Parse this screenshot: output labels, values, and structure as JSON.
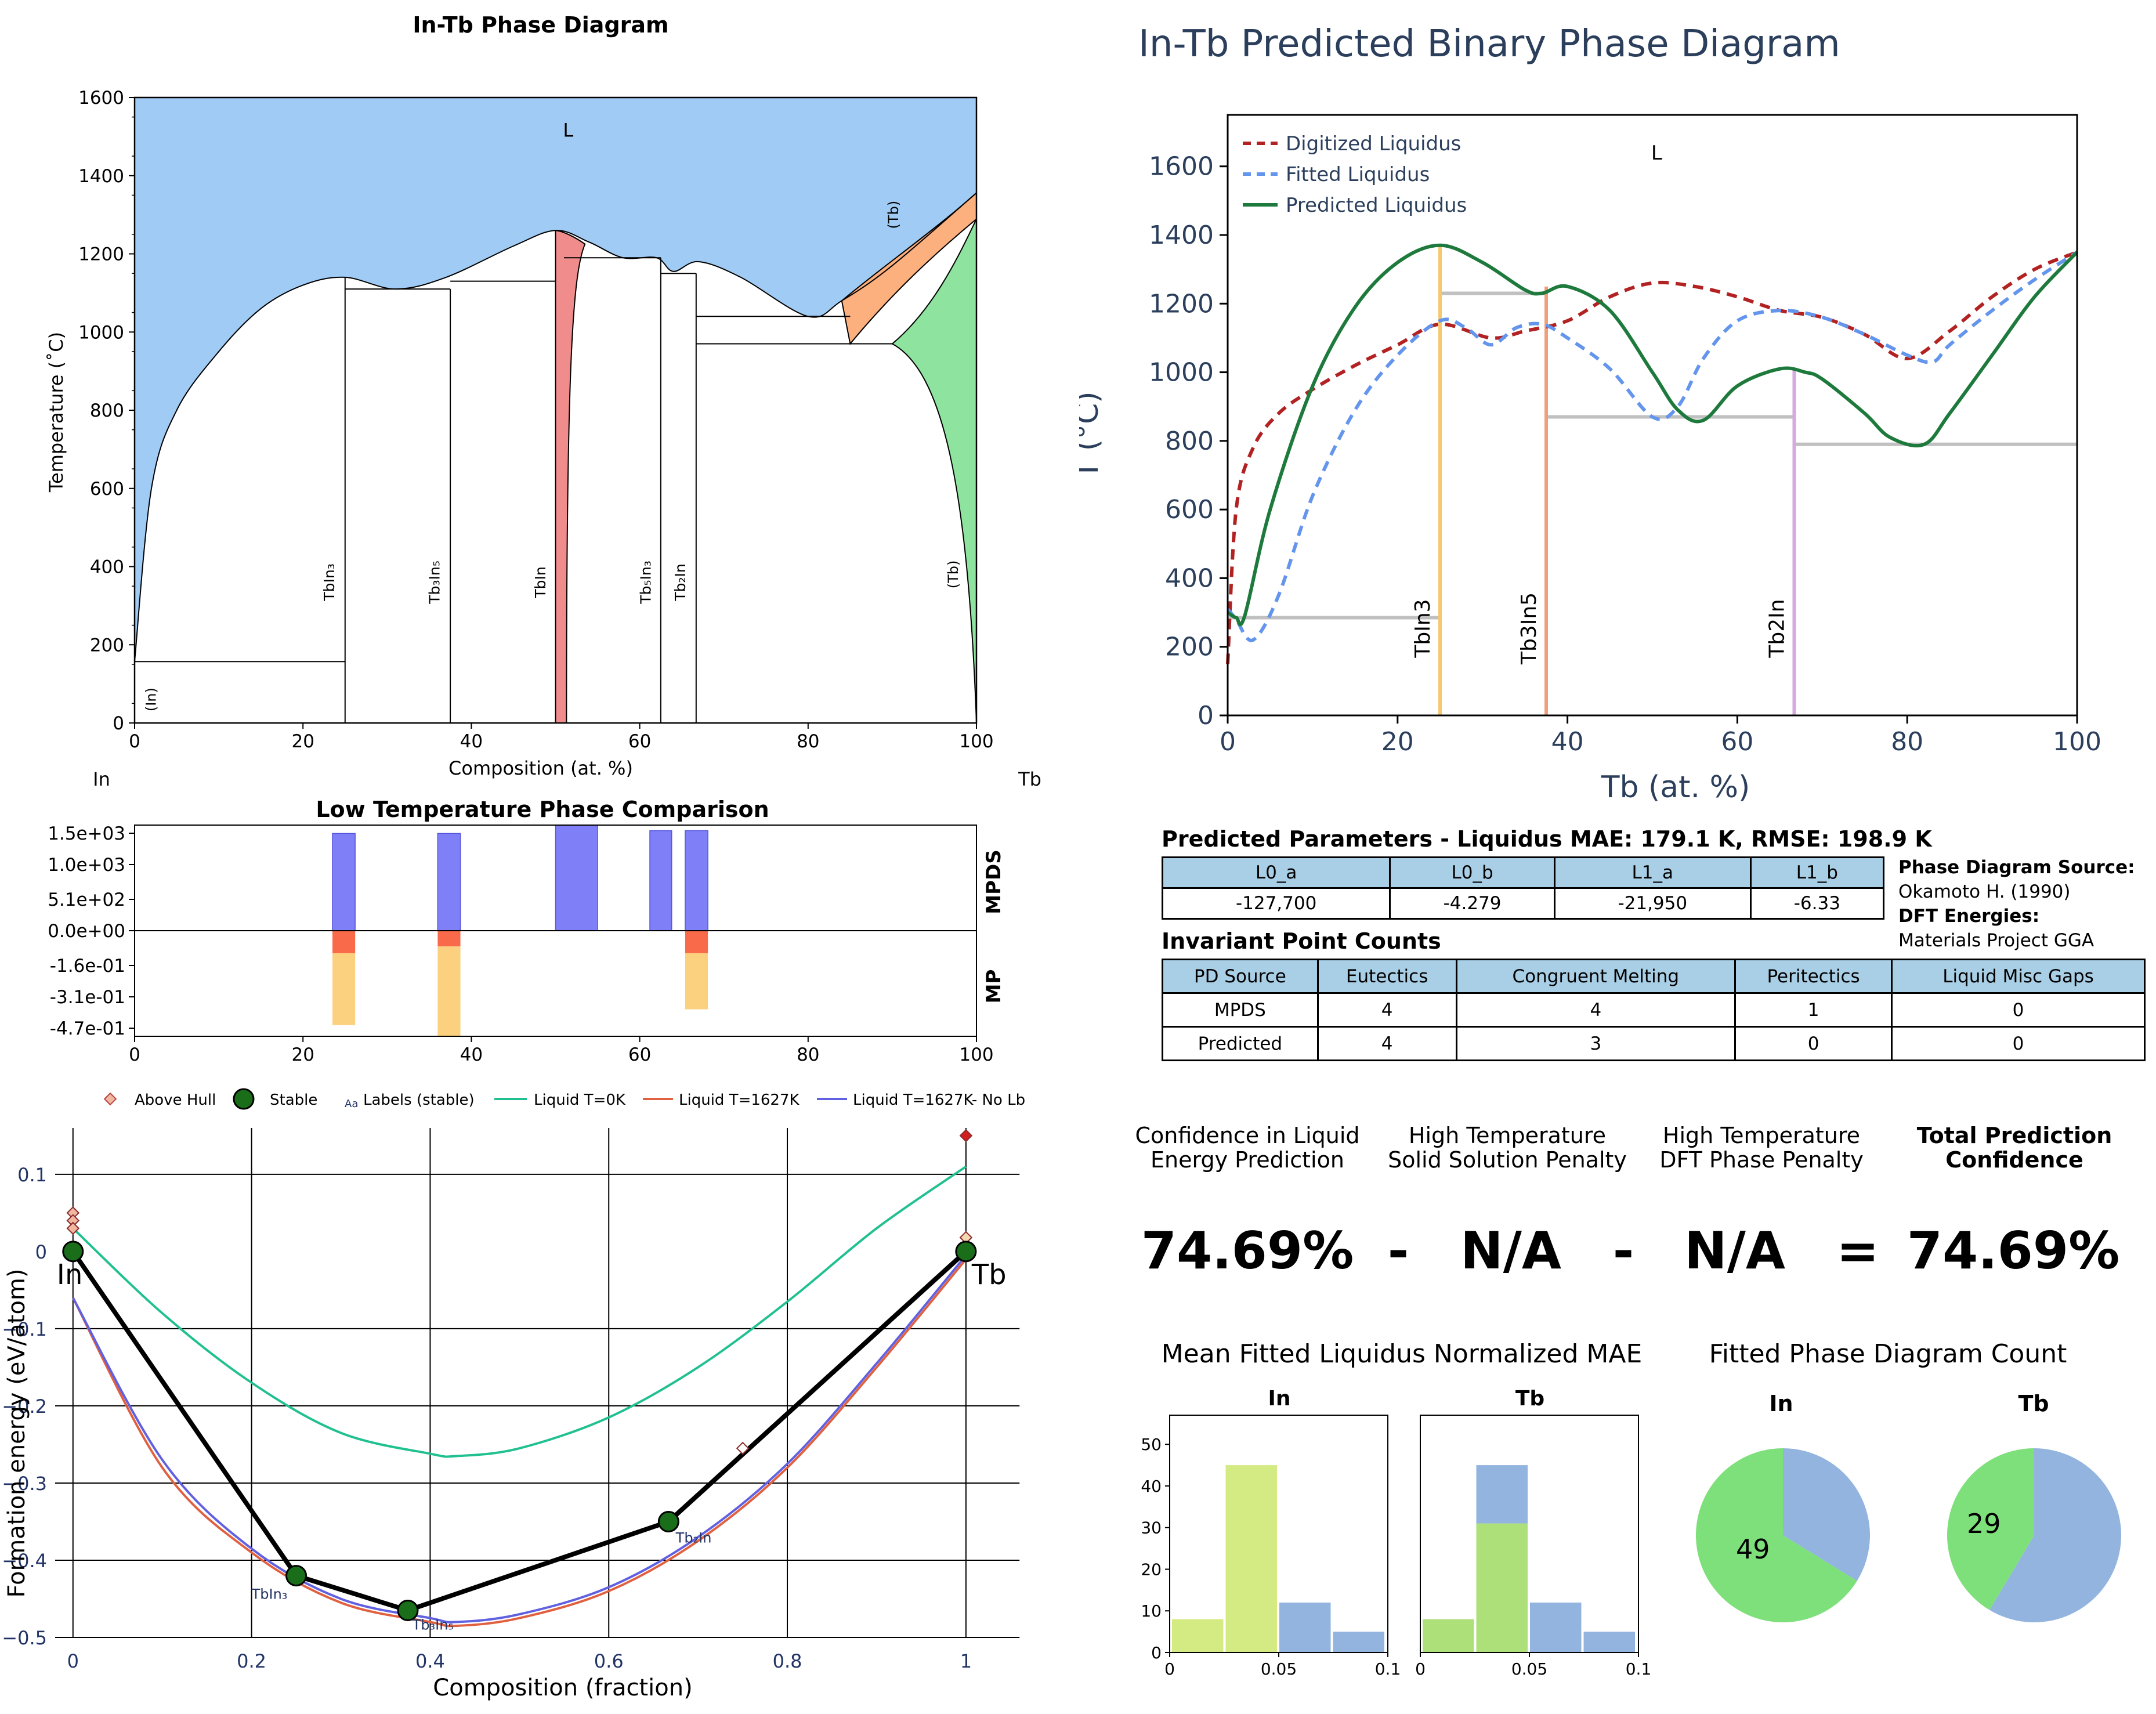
{
  "panels": {
    "mpds": {
      "title": "In-Tb Phase Diagram",
      "xlabel": "Composition (at. %)",
      "ylabel": "Temperature (˚C)",
      "left_element": "In",
      "right_element": "Tb",
      "xticks": [
        "0",
        "20",
        "40",
        "60",
        "80",
        "100"
      ],
      "yticks": [
        "0",
        "200",
        "400",
        "600",
        "800",
        "1000",
        "1200",
        "1400",
        "1600"
      ],
      "region_labels": {
        "liquid": "L",
        "tb_solid_high": "(Tb)",
        "tb_solid": "(Tb)",
        "in_solid": "(In)"
      },
      "phase_labels": [
        "TbIn₃",
        "Tb₃In₅",
        "TbIn",
        "Tb₅In₃",
        "Tb₂In"
      ],
      "colors": {
        "liquid": "#a0cbf4",
        "tbin": "#f08c8c",
        "tb_high": "#fcb07e",
        "tb_solid": "#8ee49e"
      }
    },
    "predicted": {
      "title": "In-Tb Predicted Binary Phase Diagram",
      "xlabel": "Tb (at. %)",
      "ylabel": "T (°C)",
      "liquid_label": "L",
      "legend": [
        "Digitized Liquidus",
        "Fitted Liquidus",
        "Predicted Liquidus"
      ],
      "xticks": [
        "0",
        "20",
        "40",
        "60",
        "80",
        "100"
      ],
      "yticks": [
        "0",
        "200",
        "400",
        "600",
        "800",
        "1000",
        "1200",
        "1400",
        "1600"
      ],
      "phase_labels": [
        "TbIn3",
        "Tb3In5",
        "Tb2In"
      ],
      "colors": {
        "digitized": "#b22222",
        "fitted": "#6495ed",
        "predicted": "#1e7a3c",
        "invariant": "#c0c0c0",
        "TbIn3": "#f5c86e",
        "Tb3In5": "#f0a078",
        "Tb2In": "#d8a8e0",
        "text": "#2b3f5c"
      }
    },
    "comparison": {
      "title": "Low Temperature Phase Comparison",
      "yticks": [
        "1.5e+03",
        "1.0e+03",
        "5.1e+02",
        "0.0e+00",
        "-1.6e-01",
        "-3.1e-01",
        "-4.7e-01"
      ],
      "xticks": [
        "0",
        "20",
        "40",
        "60",
        "80",
        "100"
      ],
      "label_top": "MPDS",
      "label_bottom": "MP"
    },
    "hull": {
      "xlabel": "Composition (fraction)",
      "ylabel": "Formation energy (eV/atom)",
      "legend": [
        "Above Hull",
        "Stable",
        "Labels (stable)",
        "Liquid T=0K",
        "Liquid T=1627K",
        "Liquid T=1627K- No Lb"
      ],
      "legend_aa": "Aa",
      "xticks": [
        "0",
        "0.2",
        "0.4",
        "0.6",
        "0.8",
        "1"
      ],
      "yticks": [
        "0.1",
        "0",
        "−0.1",
        "−0.2",
        "−0.3",
        "−0.4",
        "−0.5"
      ],
      "end_labels": [
        "In",
        "Tb"
      ],
      "compound_labels": [
        "TbIn₃",
        "Tb₃In₅",
        "Tb₂In"
      ]
    },
    "params": {
      "title": "Predicted Parameters - Liquidus MAE: 179.1 K, RMSE: 198.9 K",
      "headers": [
        "L0_a",
        "L0_b",
        "L1_a",
        "L1_b"
      ],
      "values": [
        "-127,700",
        "-4.279",
        "-21,950",
        "-6.33"
      ],
      "source_label": "Phase Diagram Source:",
      "source_value": "Okamoto H. (1990)",
      "dft_label": "DFT Energies:",
      "dft_value": "Materials Project GGA"
    },
    "invariants": {
      "title": "Invariant Point Counts",
      "headers": [
        "PD Source",
        "Eutectics",
        "Congruent Melting",
        "Peritectics",
        "Liquid Misc Gaps"
      ],
      "rows": [
        [
          "MPDS",
          "4",
          "4",
          "1",
          "0"
        ],
        [
          "Predicted",
          "4",
          "3",
          "0",
          "0"
        ]
      ]
    },
    "confidence": {
      "labels": [
        [
          "Confidence in Liquid",
          "Energy Prediction"
        ],
        [
          "High Temperature",
          "Solid Solution Penalty"
        ],
        [
          "High Temperature",
          "DFT Phase Penalty"
        ],
        [
          "Total Prediction",
          "Confidence"
        ]
      ],
      "values": [
        "74.69%",
        "-",
        "N/A",
        "-",
        "N/A",
        "=",
        "74.69%"
      ]
    },
    "mae": {
      "title": "Mean Fitted Liquidus Normalized MAE",
      "subtitles": [
        "In",
        "Tb"
      ],
      "xticks": [
        "0",
        "0.05",
        "0.1"
      ],
      "yticks": [
        "0",
        "10",
        "20",
        "30",
        "40",
        "50"
      ]
    },
    "count": {
      "title": "Fitted Phase Diagram Count",
      "subtitles": [
        "In",
        "Tb"
      ],
      "labels": [
        "49",
        "29"
      ]
    }
  },
  "chart_data": [
    {
      "type": "area",
      "title": "In-Tb Phase Diagram",
      "xlabel": "Composition (at. %)",
      "ylabel": "Temperature (˚C)",
      "xlim": [
        0,
        100
      ],
      "ylim": [
        0,
        1600
      ],
      "liquidus": [
        [
          0,
          157
        ],
        [
          2,
          600
        ],
        [
          5,
          800
        ],
        [
          10,
          950
        ],
        [
          15,
          1060
        ],
        [
          20,
          1120
        ],
        [
          25,
          1140
        ],
        [
          31,
          1110
        ],
        [
          37,
          1140
        ],
        [
          45,
          1220
        ],
        [
          50,
          1260
        ],
        [
          54,
          1230
        ],
        [
          58,
          1190
        ],
        [
          62,
          1190
        ],
        [
          64,
          1155
        ],
        [
          67,
          1180
        ],
        [
          72,
          1140
        ],
        [
          80,
          1040
        ],
        [
          84,
          1080
        ],
        [
          90,
          1170
        ],
        [
          100,
          1356
        ]
      ],
      "compounds": [
        {
          "name": "TbIn₃",
          "x": 25,
          "tmax": 1140
        },
        {
          "name": "Tb₃In₅",
          "x": 37.5,
          "tmax": 1110
        },
        {
          "name": "TbIn",
          "x": 50,
          "tmax": 1260
        },
        {
          "name": "Tb₅In₃",
          "x": 62.5,
          "tmax": 1190
        },
        {
          "name": "Tb₂In",
          "x": 66.7,
          "tmax": 1150
        }
      ],
      "invariants": [
        {
          "T": 157,
          "x": [
            0,
            25
          ]
        },
        {
          "T": 1110,
          "x": [
            25,
            37.5
          ]
        },
        {
          "T": 1130,
          "x": [
            37.5,
            50
          ]
        },
        {
          "T": 1190,
          "x": [
            51,
            62.5
          ]
        },
        {
          "T": 1150,
          "x": [
            62.5,
            66.7
          ]
        },
        {
          "T": 1040,
          "x": [
            66.7,
            85
          ]
        },
        {
          "T": 970,
          "x": [
            66.7,
            90
          ]
        }
      ]
    },
    {
      "type": "line",
      "title": "In-Tb Predicted Binary Phase Diagram",
      "xlabel": "Tb (at. %)",
      "ylabel": "T (°C)",
      "xlim": [
        0,
        100
      ],
      "ylim": [
        0,
        1750
      ],
      "series": [
        {
          "name": "Digitized Liquidus",
          "x": [
            0,
            1,
            3,
            6,
            10,
            15,
            20,
            25,
            31,
            35,
            40,
            45,
            50,
            55,
            60,
            65,
            70,
            75,
            80,
            85,
            90,
            95,
            100
          ],
          "y": [
            150,
            600,
            780,
            880,
            950,
            1020,
            1080,
            1140,
            1100,
            1120,
            1150,
            1220,
            1260,
            1250,
            1220,
            1180,
            1160,
            1110,
            1040,
            1120,
            1220,
            1300,
            1350
          ]
        },
        {
          "name": "Fitted Liquidus",
          "x": [
            0,
            1,
            3,
            6,
            10,
            15,
            20,
            25,
            28,
            31,
            34,
            37,
            40,
            45,
            50,
            53,
            56,
            60,
            65,
            70,
            75,
            80,
            83,
            85,
            90,
            95,
            100
          ],
          "y": [
            310,
            280,
            220,
            350,
            640,
            890,
            1050,
            1150,
            1130,
            1080,
            1130,
            1140,
            1100,
            1010,
            870,
            900,
            1040,
            1150,
            1180,
            1160,
            1110,
            1050,
            1030,
            1080,
            1180,
            1270,
            1350
          ]
        },
        {
          "name": "Predicted Liquidus",
          "x": [
            0,
            1,
            2,
            5,
            10,
            15,
            20,
            25,
            30,
            35,
            37,
            40,
            45,
            50,
            53,
            56,
            60,
            65,
            68,
            70,
            75,
            78,
            82,
            85,
            90,
            95,
            100
          ],
          "y": [
            300,
            285,
            290,
            600,
            960,
            1190,
            1320,
            1370,
            1320,
            1240,
            1230,
            1250,
            1180,
            1000,
            890,
            860,
            960,
            1010,
            1000,
            980,
            880,
            810,
            790,
            880,
            1050,
            1220,
            1350
          ]
        }
      ],
      "compounds": [
        {
          "name": "TbIn3",
          "x": 25,
          "tmax": 1370
        },
        {
          "name": "Tb3In5",
          "x": 37.5,
          "tmax": 1250
        },
        {
          "name": "Tb2In",
          "x": 66.7,
          "tmax": 1010
        }
      ],
      "invariants": [
        {
          "T": 285,
          "x": [
            0,
            25
          ]
        },
        {
          "T": 1230,
          "x": [
            25,
            37.5
          ]
        },
        {
          "T": 870,
          "x": [
            37.5,
            66.7
          ]
        },
        {
          "T": 790,
          "x": [
            66.7,
            100
          ]
        }
      ]
    },
    {
      "type": "bar",
      "title": "Low Temperature Phase Comparison",
      "xlim": [
        0,
        100
      ],
      "mpds_bars": [
        {
          "x0": 23.5,
          "x1": 26.2,
          "v": 1400
        },
        {
          "x0": 36,
          "x1": 38.7,
          "v": 1400
        },
        {
          "x0": 50,
          "x1": 55,
          "v": 1520
        },
        {
          "x0": 61.2,
          "x1": 63.8,
          "v": 1440
        },
        {
          "x0": 65.4,
          "x1": 68.1,
          "v": 1440
        }
      ],
      "mpds_ylim": [
        0,
        1520
      ],
      "mp_bars": [
        {
          "x0": 23.5,
          "x1": 26.2,
          "red": 0.1,
          "total": 0.42
        },
        {
          "x0": 36,
          "x1": 38.7,
          "red": 0.07,
          "total": 0.47
        },
        {
          "x0": 65.4,
          "x1": 68.1,
          "red": 0.1,
          "total": 0.35
        }
      ],
      "mp_ylim": [
        0,
        0.47
      ]
    },
    {
      "type": "line",
      "xlabel": "Composition (fraction)",
      "ylabel": "Formation energy (eV/atom)",
      "xlim": [
        -0.02,
        1.08
      ],
      "ylim": [
        -0.5,
        0.16
      ],
      "series": [
        {
          "name": "Liquid T=0K",
          "x": [
            0,
            0.1,
            0.2,
            0.3,
            0.4,
            0.43,
            0.5,
            0.6,
            0.7,
            0.8,
            0.9,
            1
          ],
          "y": [
            0.03,
            -0.08,
            -0.17,
            -0.235,
            -0.262,
            -0.265,
            -0.255,
            -0.215,
            -0.15,
            -0.065,
            0.03,
            0.11
          ]
        },
        {
          "name": "Liquid T=1627K",
          "x": [
            0,
            0.1,
            0.2,
            0.3,
            0.4,
            0.43,
            0.5,
            0.6,
            0.7,
            0.8,
            0.9,
            1
          ],
          "y": [
            -0.06,
            -0.28,
            -0.39,
            -0.455,
            -0.48,
            -0.485,
            -0.475,
            -0.44,
            -0.375,
            -0.28,
            -0.15,
            -0.01
          ]
        },
        {
          "name": "Liquid T=1627K- No Lb",
          "x": [
            0,
            0.1,
            0.2,
            0.3,
            0.4,
            0.43,
            0.5,
            0.6,
            0.7,
            0.8,
            0.9,
            1
          ],
          "y": [
            -0.06,
            -0.27,
            -0.385,
            -0.45,
            -0.475,
            -0.48,
            -0.47,
            -0.435,
            -0.37,
            -0.275,
            -0.145,
            -0.005
          ]
        },
        {
          "name": "Stable",
          "x": [
            0,
            0.25,
            0.375,
            0.667,
            1
          ],
          "y": [
            0,
            -0.42,
            -0.465,
            -0.35,
            0
          ]
        },
        {
          "name": "Above Hull",
          "x": [
            0,
            0,
            0,
            0.75,
            1,
            1
          ],
          "y": [
            0.05,
            0.04,
            0.03,
            -0.255,
            0.15,
            0.018
          ]
        }
      ]
    },
    {
      "type": "bar",
      "title": "Mean Fitted Liquidus Normalized MAE",
      "panels": [
        {
          "name": "In",
          "bins": [
            [
              0,
              0.025
            ],
            [
              0.025,
              0.05
            ],
            [
              0.05,
              0.075
            ],
            [
              0.075,
              0.1
            ]
          ],
          "green": [
            8,
            45,
            0,
            0
          ],
          "blue": [
            0,
            0,
            12,
            5
          ]
        },
        {
          "name": "Tb",
          "bins": [
            [
              0,
              0.025
            ],
            [
              0.025,
              0.05
            ],
            [
              0.05,
              0.075
            ],
            [
              0.075,
              0.1
            ]
          ],
          "green": [
            8,
            31,
            0,
            0
          ],
          "blue": [
            0,
            14,
            12,
            5
          ]
        }
      ],
      "ylim": [
        0,
        57
      ]
    },
    {
      "type": "pie",
      "title": "Fitted Phase Diagram Count",
      "panels": [
        {
          "name": "In",
          "green": 49,
          "blue": 25
        },
        {
          "name": "Tb",
          "green": 29,
          "blue": 41
        }
      ]
    }
  ]
}
